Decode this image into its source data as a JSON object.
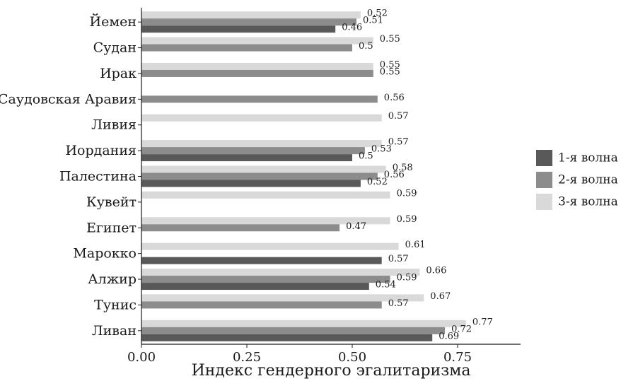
{
  "chart_data": {
    "type": "bar",
    "orientation": "horizontal",
    "title": "",
    "xlabel": "Индекс гендерного эгалитаризма",
    "ylabel": "",
    "xlim": [
      0,
      0.9
    ],
    "xticks": [
      "0.00",
      "0.25",
      "0.50",
      "0.75"
    ],
    "grid": false,
    "legend_position": "right",
    "categories": [
      "Йемен",
      "Судан",
      "Ирак",
      "Саудовская Аравия",
      "Ливия",
      "Иордания",
      "Палестина",
      "Кувейт",
      "Египет",
      "Марокко",
      "Алжир",
      "Тунис",
      "Ливан"
    ],
    "series": [
      {
        "name": "1-я волна",
        "color": "#595959",
        "values": [
          0.46,
          null,
          null,
          null,
          null,
          0.5,
          0.52,
          null,
          null,
          0.57,
          0.54,
          null,
          0.69
        ],
        "labels": [
          "0.46",
          "",
          "",
          "",
          "",
          "0.5",
          "0.52",
          "",
          "",
          "0.57",
          "0.54",
          "",
          "0.69"
        ]
      },
      {
        "name": "2-я волна",
        "color": "#8c8c8c",
        "values": [
          0.51,
          0.5,
          0.55,
          0.56,
          null,
          0.53,
          0.56,
          null,
          0.47,
          null,
          0.59,
          0.57,
          0.72
        ],
        "labels": [
          "0.51",
          "0.5",
          "0.55",
          "0.56",
          "",
          "0.53",
          "0.56",
          "",
          "0.47",
          "",
          "0.59",
          "0.57",
          "0.72"
        ]
      },
      {
        "name": "3-я волна",
        "color": "#d9d9d9",
        "values": [
          0.52,
          0.55,
          0.55,
          null,
          0.57,
          0.57,
          0.58,
          0.59,
          0.59,
          0.61,
          0.66,
          0.67,
          0.77
        ],
        "labels": [
          "0.52",
          "0.55",
          "0.55",
          "",
          "0.57",
          "0.57",
          "0.58",
          "0.59",
          "0.59",
          "0.61",
          "0.66",
          "0.67",
          "0.77"
        ]
      }
    ]
  }
}
